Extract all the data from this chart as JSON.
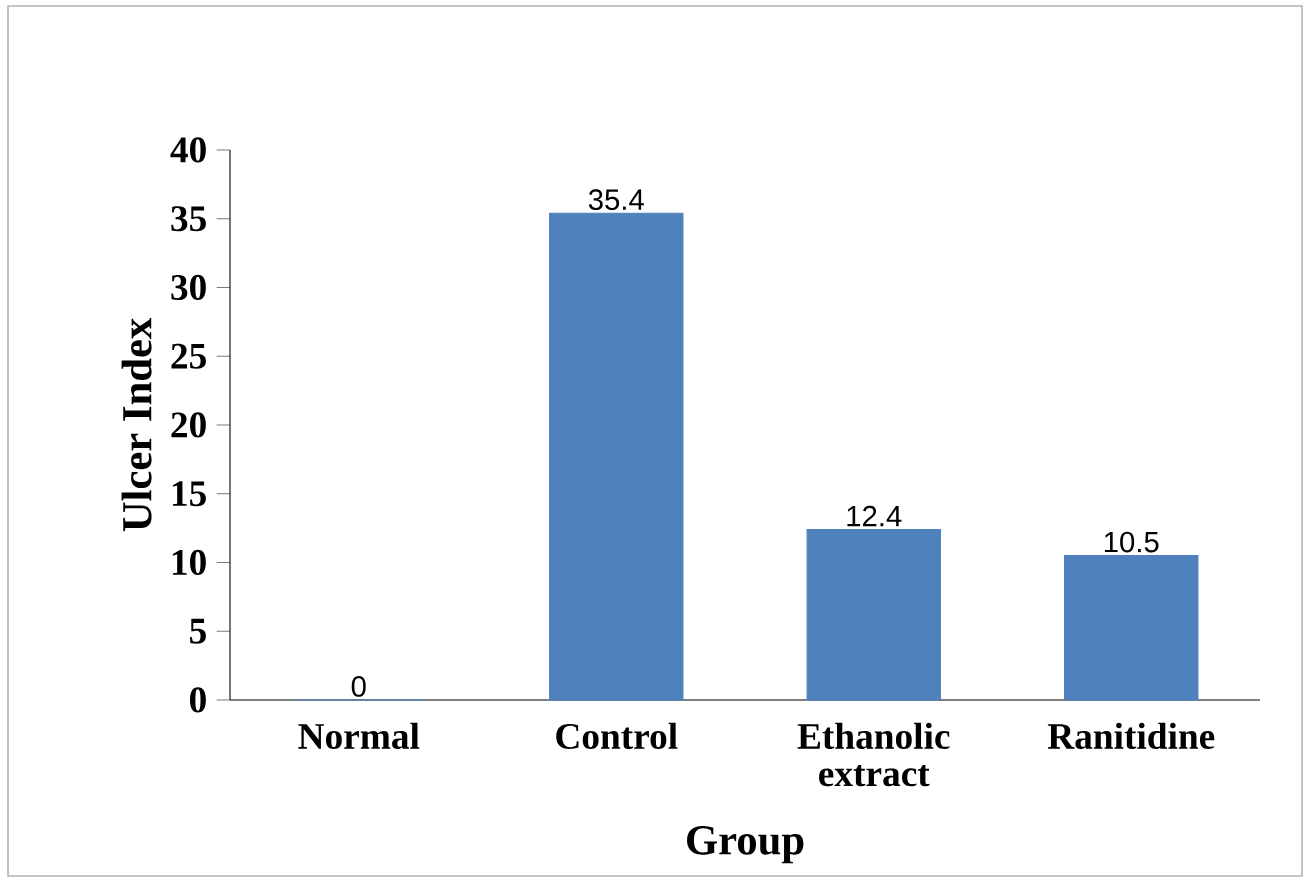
{
  "chart_data": {
    "type": "bar",
    "xlabel": "Group",
    "ylabel": "Ulcer Index",
    "categories": [
      "Normal",
      "Control",
      "Ethanolic extract",
      "Ranitidine"
    ],
    "values": [
      0,
      35.4,
      12.4,
      10.5
    ],
    "color": "#4f81bd",
    "ylim": [
      0,
      40
    ],
    "yticks": [
      0,
      5,
      10,
      15,
      20,
      25,
      30,
      35,
      40
    ],
    "data_labels": true
  }
}
